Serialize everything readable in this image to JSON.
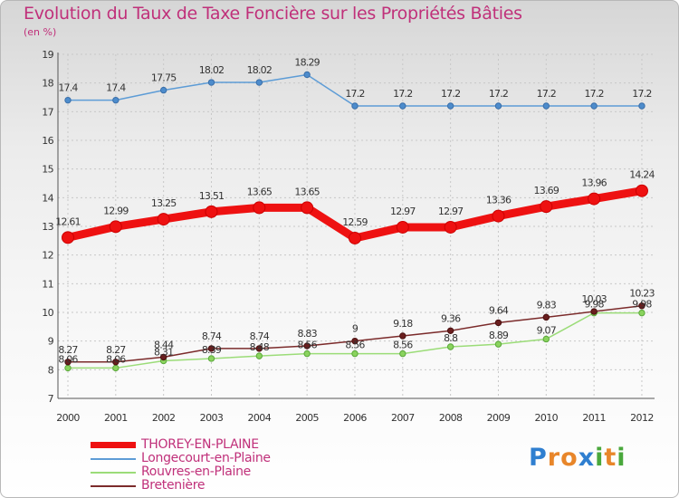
{
  "title": "Evolution du Taux de Taxe Foncière sur les Propriétés Bâties",
  "subtitle": "(en %)",
  "chart_data": {
    "type": "line",
    "title": "Evolution du Taux de Taxe Foncière sur les Propriétés Bâties",
    "ylabel": "(en %)",
    "x": [
      "2000",
      "2001",
      "2002",
      "2003",
      "2004",
      "2005",
      "2006",
      "2007",
      "2008",
      "2009",
      "2010",
      "2011",
      "2012"
    ],
    "ylim": [
      7,
      19
    ],
    "yticks": [
      "7",
      "8",
      "9",
      "10",
      "11",
      "12",
      "13",
      "14",
      "15",
      "16",
      "17",
      "18",
      "19"
    ],
    "grid": true,
    "legend_position": "bottom-left",
    "series": [
      {
        "name": "THOREY-EN-PLAINE",
        "color": "#ee1111",
        "values": [
          12.61,
          12.99,
          13.25,
          13.51,
          13.65,
          13.65,
          12.59,
          12.97,
          12.97,
          13.36,
          13.69,
          13.96,
          14.24
        ],
        "labels": [
          "12.61",
          "12.99",
          "13.25",
          "13.51",
          "13.65",
          "13.65",
          "12.59",
          "12.97",
          "12.97",
          "13.36",
          "13.69",
          "13.96",
          "14.24"
        ]
      },
      {
        "name": "Longecourt-en-Plaine",
        "color": "#5d9cd6",
        "values": [
          17.4,
          17.4,
          17.75,
          18.02,
          18.02,
          18.29,
          17.2,
          17.2,
          17.2,
          17.2,
          17.2,
          17.2,
          17.2
        ],
        "labels": [
          "17.4",
          "17.4",
          "17.75",
          "18.02",
          "18.02",
          "18.29",
          "17.2",
          "17.2",
          "17.2",
          "17.2",
          "17.2",
          "17.2",
          "17.2"
        ]
      },
      {
        "name": "Rouvres-en-Plaine",
        "color": "#9bdc78",
        "values": [
          8.06,
          8.06,
          8.31,
          8.39,
          8.48,
          8.56,
          8.56,
          8.56,
          8.8,
          8.89,
          9.07,
          9.98,
          9.98
        ],
        "labels": [
          "8.06",
          "8.06",
          "8.31",
          "8.39",
          "8.48",
          "8.56",
          "8.56",
          "8.56",
          "8.8",
          "8.89",
          "9.07",
          "9.98",
          "9.98"
        ]
      },
      {
        "name": "Bretenière",
        "color": "#7b2b2b",
        "values": [
          8.27,
          8.27,
          8.44,
          8.74,
          8.74,
          8.83,
          9.0,
          9.18,
          9.36,
          9.64,
          9.83,
          10.03,
          10.23
        ],
        "labels": [
          "8.27",
          "8.27",
          "8.44",
          "8.74",
          "8.74",
          "8.83",
          "9",
          "9.18",
          "9.36",
          "9.64",
          "9.83",
          "10.03",
          "10.23"
        ]
      }
    ]
  },
  "logo": {
    "letters": [
      "P",
      "r",
      "o",
      "x",
      "i",
      "t",
      "i"
    ],
    "colors": [
      "#2f7fd0",
      "#e8862a",
      "#e8862a",
      "#2f7fd0",
      "#4aa83c",
      "#e8862a",
      "#4aa83c"
    ]
  }
}
